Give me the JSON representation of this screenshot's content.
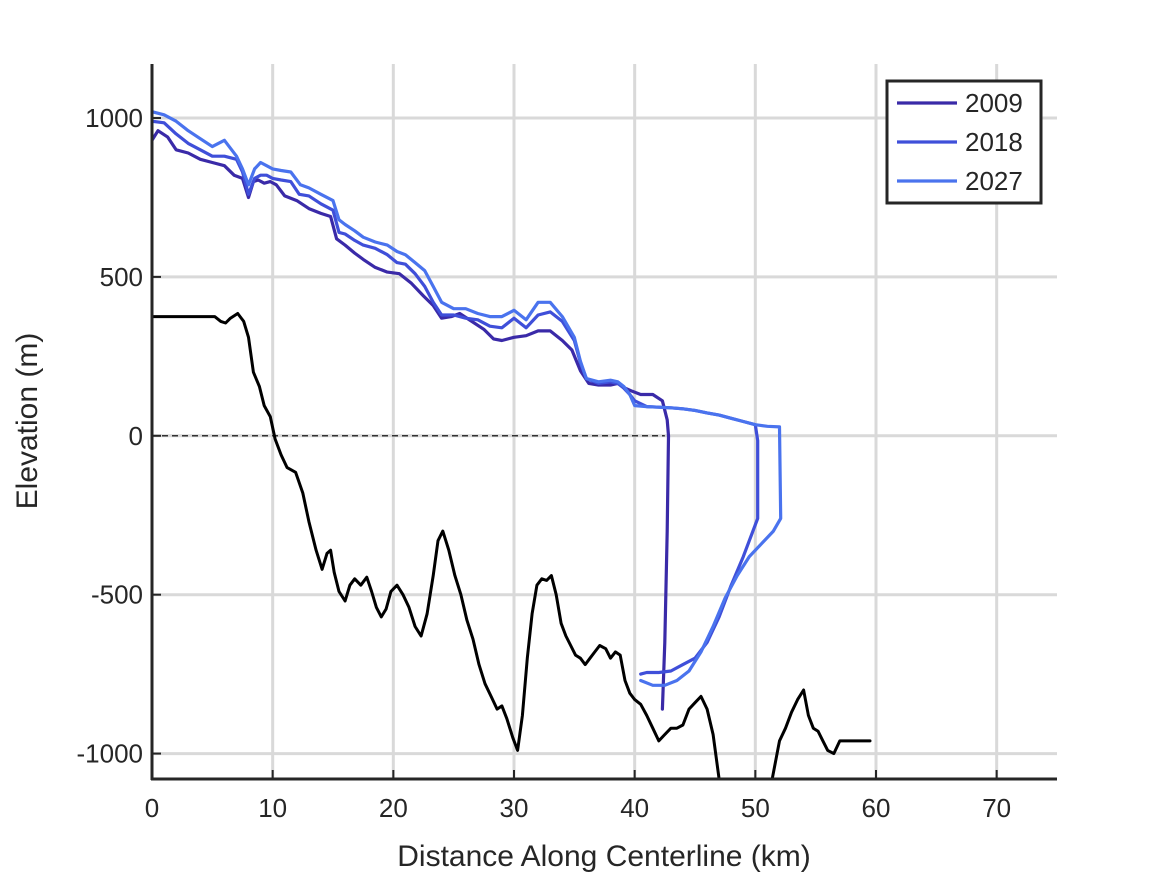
{
  "chart_data": {
    "type": "line",
    "xlabel": "Distance Along Centerline (km)",
    "ylabel": "Elevation (m)",
    "xlim": [
      0,
      75
    ],
    "ylim": [
      -1080,
      1170
    ],
    "xticks": [
      0,
      10,
      20,
      30,
      40,
      50,
      60,
      70
    ],
    "xtick_labels": [
      "0",
      "10",
      "20",
      "30",
      "40",
      "50",
      "60",
      "70"
    ],
    "yticks": [
      -1000,
      -500,
      0,
      500,
      1000
    ],
    "ytick_labels": [
      "-1000",
      "-500",
      "0",
      "500",
      "1000"
    ],
    "grid": true,
    "legend_position": "top-right",
    "sea_level": {
      "y": 0,
      "x": [
        0,
        42.5
      ],
      "style": "dashed"
    },
    "bed": {
      "color": "#000000",
      "x": [
        0,
        5.2,
        5.7,
        6.1,
        6.5,
        7.1,
        7.6,
        8.0,
        8.4,
        8.9,
        9.3,
        9.8,
        10.2,
        10.7,
        11.2,
        11.9,
        12.5,
        13.0,
        13.6,
        14.1,
        14.5,
        14.8,
        15.1,
        15.5,
        16.0,
        16.4,
        16.8,
        17.3,
        17.8,
        18.2,
        18.6,
        19.0,
        19.4,
        19.8,
        20.3,
        20.8,
        21.3,
        21.8,
        22.3,
        22.8,
        23.3,
        23.7,
        24.1,
        24.6,
        25.1,
        25.6,
        26.1,
        26.6,
        27.1,
        27.6,
        28.1,
        28.6,
        29.0,
        29.4,
        29.9,
        30.3,
        30.7,
        31.1,
        31.5,
        31.9,
        32.3,
        32.7,
        33.1,
        33.5,
        33.9,
        34.3,
        34.7,
        35.1,
        35.5,
        35.9,
        36.3,
        36.7,
        37.1,
        37.6,
        38.0,
        38.4,
        38.8,
        39.2,
        39.6,
        40.0,
        40.5,
        41.0,
        41.5,
        42.0,
        42.5,
        43.0,
        43.5,
        44.0,
        44.5,
        45.0,
        45.5,
        46.0,
        46.5,
        47.0,
        47.5,
        48.0,
        48.5
      ],
      "y": [
        375,
        375,
        360,
        355,
        370,
        385,
        360,
        310,
        200,
        155,
        95,
        60,
        -10,
        -60,
        -100,
        -115,
        -180,
        -270,
        -360,
        -420,
        -370,
        -360,
        -430,
        -490,
        -520,
        -470,
        -450,
        -470,
        -445,
        -490,
        -540,
        -570,
        -545,
        -490,
        -470,
        -500,
        -540,
        -600,
        -630,
        -560,
        -440,
        -330,
        -300,
        -360,
        -440,
        -500,
        -580,
        -640,
        -720,
        -780,
        -820,
        -860,
        -850,
        -890,
        -950,
        -990,
        -880,
        -700,
        -560,
        -470,
        -450,
        -455,
        -440,
        -500,
        -590,
        -630,
        -660,
        -690,
        -700,
        -720,
        -700,
        -680,
        -660,
        -670,
        -700,
        -680,
        -690,
        -770,
        -810,
        -830,
        -845,
        -880,
        -920,
        -960,
        -940,
        -920,
        -920,
        -910,
        -860,
        -840,
        -820,
        -860,
        -940,
        -1080,
        -1150,
        -1200,
        -1220
      ]
    },
    "bed_right": {
      "color": "#000000",
      "x": [
        50.8,
        51.4,
        52.0,
        52.5,
        53.0,
        53.5,
        54.0,
        54.4,
        54.8,
        55.2,
        55.6,
        56.0,
        56.5,
        57.0,
        58.0,
        59.5
      ],
      "y": [
        -1150,
        -1080,
        -960,
        -920,
        -870,
        -830,
        -800,
        -880,
        -920,
        -930,
        -960,
        -990,
        -1000,
        -960,
        -960,
        -960
      ]
    },
    "series": [
      {
        "name": "2009",
        "color": "#3A2AA8",
        "x": [
          0,
          0.5,
          1.3,
          2.0,
          3.0,
          4.0,
          5.0,
          6.0,
          6.8,
          7.5,
          8.0,
          8.4,
          8.8,
          9.3,
          9.8,
          10.3,
          11.0,
          12.0,
          13.0,
          14.0,
          14.8,
          15.3,
          16.0,
          16.8,
          17.5,
          18.5,
          19.5,
          20.5,
          21.5,
          22.5,
          23.3,
          24.0,
          24.8,
          25.5,
          26.5,
          27.5,
          28.3,
          29.0,
          30.0,
          31.0,
          32.0,
          33.0,
          34.0,
          34.8,
          35.5,
          36.2,
          37.0,
          38.0,
          38.6,
          39.2,
          39.8,
          40.5,
          41.5,
          42.3,
          42.7,
          42.8,
          42.7,
          42.5,
          42.3
        ],
        "y": [
          930,
          960,
          940,
          900,
          890,
          870,
          860,
          850,
          820,
          810,
          750,
          800,
          805,
          795,
          800,
          790,
          755,
          740,
          715,
          700,
          690,
          620,
          600,
          575,
          555,
          530,
          515,
          510,
          480,
          440,
          410,
          370,
          375,
          385,
          360,
          335,
          305,
          300,
          310,
          315,
          330,
          330,
          300,
          270,
          205,
          165,
          160,
          160,
          165,
          150,
          140,
          130,
          130,
          110,
          50,
          0,
          -300,
          -650,
          -860
        ]
      },
      {
        "name": "2018",
        "color": "#3F4FD9",
        "x": [
          0,
          1.0,
          2.0,
          3.0,
          4.0,
          5.0,
          6.0,
          7.0,
          7.5,
          8.0,
          8.5,
          9.0,
          9.5,
          10.0,
          10.7,
          11.5,
          12.2,
          13.0,
          14.0,
          15.0,
          15.5,
          16.0,
          16.8,
          17.5,
          18.5,
          19.5,
          20.3,
          21.0,
          21.8,
          22.6,
          23.3,
          24.0,
          25.0,
          26.0,
          27.0,
          28.0,
          29.0,
          30.0,
          31.0,
          32.0,
          33.0,
          34.0,
          35.0,
          35.5,
          36.0,
          37.0,
          38.0,
          38.6,
          39.1,
          39.6,
          40.0,
          41.0,
          42.0,
          43.0,
          44.0,
          45.0,
          46.0,
          47.0,
          48.0,
          49.0,
          50.0,
          50.2,
          50.2,
          49.0,
          48.0,
          47.0,
          46.0,
          45.0,
          44.0,
          43.0,
          42.0,
          41.0,
          40.5
        ],
        "y": [
          990,
          985,
          950,
          920,
          900,
          880,
          880,
          870,
          830,
          760,
          810,
          820,
          820,
          810,
          805,
          800,
          760,
          755,
          730,
          710,
          640,
          635,
          615,
          600,
          590,
          570,
          545,
          540,
          510,
          470,
          420,
          380,
          380,
          370,
          365,
          345,
          340,
          370,
          340,
          380,
          390,
          360,
          300,
          230,
          180,
          165,
          170,
          165,
          150,
          130,
          110,
          92,
          90,
          88,
          85,
          80,
          72,
          65,
          55,
          45,
          35,
          -15,
          -260,
          -380,
          -470,
          -570,
          -650,
          -700,
          -720,
          -740,
          -745,
          -745,
          -750
        ]
      },
      {
        "name": "2027",
        "color": "#4A73EE",
        "x": [
          0,
          1.0,
          2.0,
          3.0,
          4.0,
          5.0,
          6.0,
          7.0,
          7.5,
          8.0,
          8.5,
          9.0,
          9.5,
          10.0,
          10.7,
          11.5,
          12.3,
          13.0,
          14.0,
          15.0,
          15.5,
          16.0,
          16.8,
          17.5,
          18.5,
          19.5,
          20.3,
          21.0,
          21.8,
          22.6,
          23.3,
          24.0,
          25.0,
          26.0,
          27.0,
          28.0,
          29.0,
          30.0,
          31.0,
          32.0,
          33.0,
          34.0,
          35.0,
          35.5,
          36.0,
          37.0,
          38.0,
          38.6,
          39.1,
          39.6,
          40.0,
          41.0,
          42.0,
          43.0,
          44.0,
          45.0,
          46.0,
          47.0,
          48.0,
          49.0,
          50.0,
          51.0,
          52.0,
          52.1,
          51.5,
          50.5,
          49.5,
          48.5,
          47.5,
          46.5,
          45.5,
          44.5,
          43.5,
          42.5,
          41.5,
          40.5
        ],
        "y": [
          1020,
          1010,
          990,
          960,
          935,
          910,
          930,
          880,
          840,
          790,
          840,
          860,
          850,
          840,
          835,
          830,
          790,
          780,
          760,
          740,
          680,
          665,
          645,
          625,
          610,
          600,
          580,
          570,
          545,
          520,
          470,
          420,
          400,
          400,
          385,
          375,
          375,
          395,
          365,
          420,
          420,
          375,
          310,
          235,
          180,
          170,
          175,
          170,
          155,
          130,
          95,
          92,
          90,
          88,
          85,
          80,
          72,
          65,
          55,
          45,
          35,
          30,
          28,
          -260,
          -300,
          -340,
          -380,
          -440,
          -510,
          -600,
          -680,
          -740,
          -770,
          -785,
          -785,
          -770
        ]
      }
    ]
  }
}
